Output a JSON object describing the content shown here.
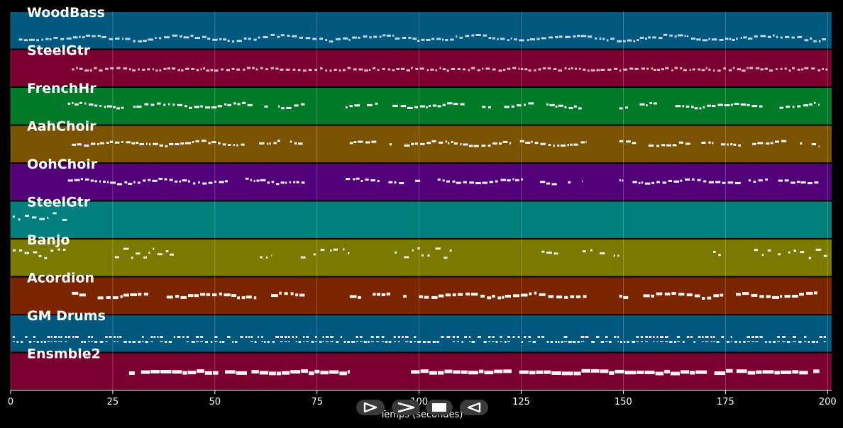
{
  "chart_data": {
    "type": "piano-roll",
    "xlabel": "Temps (secondes)",
    "xlim": [
      0,
      201
    ],
    "xticks": [
      0,
      25,
      50,
      75,
      100,
      125,
      150,
      175,
      200
    ],
    "grid": true,
    "tracks": [
      {
        "name": "WoodBass",
        "color": "#00587f",
        "style": "dense-bass",
        "segments": [
          [
            2,
            200
          ]
        ]
      },
      {
        "name": "SteelGtr",
        "color": "#7a0030",
        "style": "dense-flat",
        "segments": [
          [
            15,
            200
          ]
        ]
      },
      {
        "name": "FrenchHr",
        "color": "#007a27",
        "style": "phrases",
        "segments": [
          [
            14,
            72
          ],
          [
            82,
            140
          ],
          [
            149,
            198
          ]
        ]
      },
      {
        "name": "AahChoir",
        "color": "#7a5300",
        "style": "phrases",
        "segments": [
          [
            15,
            72
          ],
          [
            83,
            141
          ],
          [
            149,
            198
          ]
        ]
      },
      {
        "name": "OohChoir",
        "color": "#51007a",
        "style": "phrases",
        "segments": [
          [
            14,
            72
          ],
          [
            82,
            140
          ],
          [
            149,
            198
          ]
        ]
      },
      {
        "name": "SteelGtr",
        "color": "#007f7f",
        "style": "sparse",
        "segments": [
          [
            0.5,
            14
          ]
        ]
      },
      {
        "name": "Banjo",
        "color": "#7a7a00",
        "style": "sparse",
        "segments": [
          [
            0.5,
            14
          ],
          [
            25.5,
            40
          ],
          [
            61,
            64
          ],
          [
            71,
            83
          ],
          [
            94,
            108
          ],
          [
            130,
            134
          ],
          [
            140,
            149
          ],
          [
            172,
            175
          ],
          [
            182,
            200
          ]
        ]
      },
      {
        "name": "Acordion",
        "color": "#7a2500",
        "style": "phrases-sustain",
        "segments": [
          [
            15,
            72
          ],
          [
            83,
            141
          ],
          [
            149,
            198
          ]
        ]
      },
      {
        "name": "GM Drums",
        "color": "#00587f",
        "style": "drums",
        "segments": [
          [
            0.5,
            200
          ]
        ]
      },
      {
        "name": "Ensmble2",
        "color": "#7a0030",
        "style": "chords",
        "segments": [
          [
            29,
            83
          ],
          [
            98,
            198
          ]
        ]
      }
    ]
  },
  "controls": {
    "items": [
      {
        "name": "play-button-icon",
        "glyph": "play"
      },
      {
        "name": "fast-forward-button-icon",
        "glyph": "forward"
      },
      {
        "name": "stop-button-icon",
        "glyph": "stop"
      },
      {
        "name": "rewind-button-icon",
        "glyph": "back"
      }
    ]
  }
}
